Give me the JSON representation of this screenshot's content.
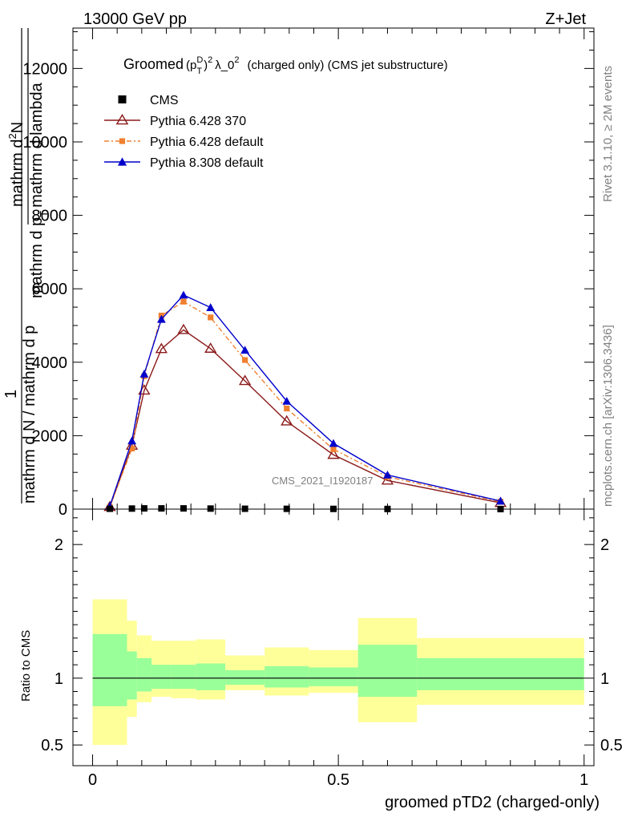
{
  "header": {
    "left": "13000 GeV pp",
    "right": "Z+Jet"
  },
  "side_text": {
    "rivet": "Rivet 3.1.10, ≥ 2M events",
    "mcplots": "mcplots.cern.ch [arXiv:1306.3436]"
  },
  "colors": {
    "cms": "#000000",
    "py6_370": "#8b1a1a",
    "py6_default": "#f08030",
    "py8_default": "#0000cc",
    "band_inner": "#99ff99",
    "band_outer": "#ffff99"
  },
  "chart_data": [
    {
      "type": "line",
      "panel": "main",
      "title_parts": {
        "prefix": "Groomed",
        "p": "(p",
        "sup_d": "D",
        "sub_t": "T",
        "close": ")",
        "sup2": "2",
        "lambda": "λ_0",
        "sup2b": "2",
        "rest": "(charged only) (CMS jet substructure)"
      },
      "ylabel_parts": {
        "one": "1",
        "den": "mathrm d N / mathrm d p",
        "num_top": "mathrm d",
        "num_sup": "2",
        "num_n": "N",
        "num_bottom": "mathrm d p",
        "num_sub": "T",
        "num_end": "mathrm d lambda"
      },
      "xlim": [
        -0.04,
        1.02
      ],
      "ylim": [
        0,
        13100
      ],
      "y_ticks": [
        0,
        2000,
        4000,
        6000,
        8000,
        10000,
        12000
      ],
      "y_tick_labels": [
        "0",
        "2000",
        "4000",
        "6000",
        "8000",
        "10000",
        "12000"
      ],
      "watermark": "CMS_2021_I1920187",
      "legend_position": "top-left",
      "series": [
        {
          "name": "CMS",
          "marker": "square",
          "x": [
            0.035,
            0.08,
            0.105,
            0.14,
            0.185,
            0.24,
            0.31,
            0.395,
            0.49,
            0.6,
            0.83
          ],
          "y": [
            10,
            15,
            20,
            20,
            20,
            15,
            10,
            8,
            6,
            4,
            1
          ]
        },
        {
          "name": "Pythia 6.428 370",
          "marker": "open-triangle",
          "x": [
            0.035,
            0.08,
            0.105,
            0.14,
            0.185,
            0.24,
            0.31,
            0.395,
            0.49,
            0.6,
            0.83
          ],
          "y": [
            60,
            1730,
            3230,
            4360,
            4880,
            4370,
            3490,
            2390,
            1480,
            780,
            170
          ]
        },
        {
          "name": "Pythia 6.428 default",
          "marker": "square",
          "x": [
            0.035,
            0.08,
            0.105,
            0.14,
            0.185,
            0.24,
            0.31,
            0.395,
            0.49,
            0.6,
            0.83
          ],
          "y": [
            60,
            1650,
            3620,
            5270,
            5650,
            5220,
            4060,
            2740,
            1630,
            880,
            200
          ]
        },
        {
          "name": "Pythia 8.308 default",
          "marker": "triangle",
          "x": [
            0.035,
            0.08,
            0.105,
            0.14,
            0.185,
            0.24,
            0.31,
            0.395,
            0.49,
            0.6,
            0.83
          ],
          "y": [
            80,
            1860,
            3680,
            5170,
            5830,
            5490,
            4330,
            2940,
            1790,
            930,
            220
          ]
        }
      ]
    },
    {
      "type": "area",
      "panel": "ratio",
      "ylabel": "Ratio to CMS",
      "xlabel": "groomed pTD2 (charged-only)",
      "xlim": [
        -0.04,
        1.02
      ],
      "ylim": [
        0.345,
        2.265
      ],
      "y_ticks": [
        0.5,
        1,
        2
      ],
      "y_tick_labels": [
        "0.5",
        "1",
        "2"
      ],
      "x_ticks": [
        0,
        0.5,
        1
      ],
      "x_tick_labels": [
        "0",
        "0.5",
        "1"
      ],
      "bins": [
        {
          "x0": 0.0,
          "x1": 0.07,
          "outer": [
            0.5,
            1.59
          ],
          "inner": [
            0.79,
            1.33
          ]
        },
        {
          "x0": 0.07,
          "x1": 0.09,
          "outer": [
            0.71,
            1.43
          ],
          "inner": [
            0.84,
            1.2
          ]
        },
        {
          "x0": 0.09,
          "x1": 0.12,
          "outer": [
            0.82,
            1.32
          ],
          "inner": [
            0.9,
            1.15
          ]
        },
        {
          "x0": 0.12,
          "x1": 0.16,
          "outer": [
            0.86,
            1.28
          ],
          "inner": [
            0.92,
            1.1
          ]
        },
        {
          "x0": 0.16,
          "x1": 0.21,
          "outer": [
            0.85,
            1.28
          ],
          "inner": [
            0.92,
            1.1
          ]
        },
        {
          "x0": 0.21,
          "x1": 0.27,
          "outer": [
            0.84,
            1.29
          ],
          "inner": [
            0.91,
            1.11
          ]
        },
        {
          "x0": 0.27,
          "x1": 0.35,
          "outer": [
            0.91,
            1.17
          ],
          "inner": [
            0.95,
            1.06
          ]
        },
        {
          "x0": 0.35,
          "x1": 0.44,
          "outer": [
            0.87,
            1.23
          ],
          "inner": [
            0.93,
            1.09
          ]
        },
        {
          "x0": 0.44,
          "x1": 0.54,
          "outer": [
            0.89,
            1.21
          ],
          "inner": [
            0.94,
            1.08
          ]
        },
        {
          "x0": 0.54,
          "x1": 0.66,
          "outer": [
            0.67,
            1.45
          ],
          "inner": [
            0.86,
            1.25
          ]
        },
        {
          "x0": 0.66,
          "x1": 1.0,
          "outer": [
            0.8,
            1.3
          ],
          "inner": [
            0.91,
            1.15
          ]
        }
      ]
    }
  ]
}
